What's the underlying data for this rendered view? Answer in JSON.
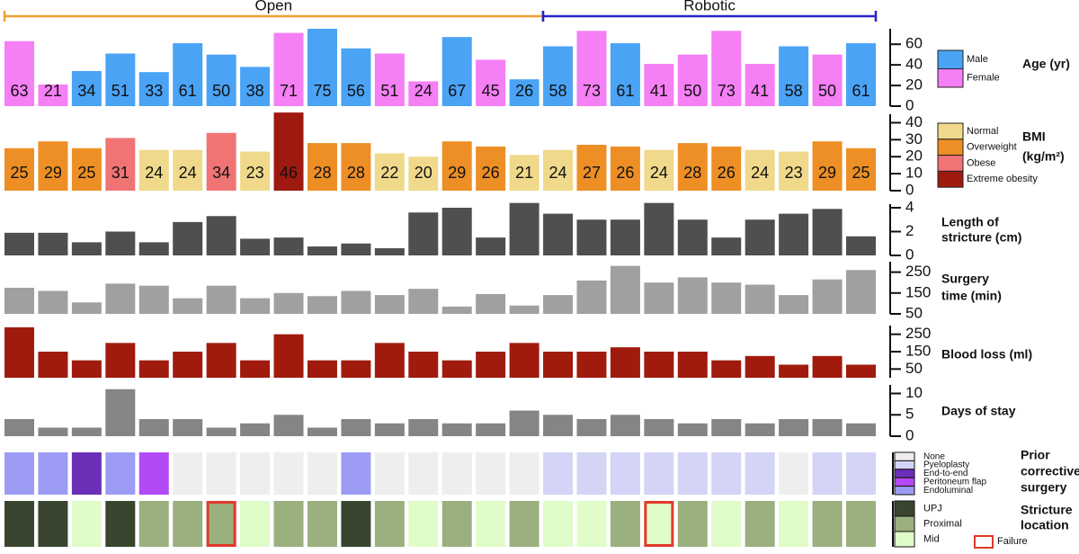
{
  "groups": [
    {
      "label": "Open",
      "color": "#f0a030",
      "count": 16
    },
    {
      "label": "Robotic",
      "color": "#2323c8",
      "count": 10
    }
  ],
  "chart_data": [
    {
      "type": "bar",
      "title": [
        "Age (yr)"
      ],
      "ylim": [
        0,
        75
      ],
      "yticks": [
        0,
        20,
        40,
        60
      ],
      "show_value_labels": true,
      "legend": [
        {
          "name": "Male",
          "color": "#4aa3f5"
        },
        {
          "name": "Female",
          "color": "#f57ff5"
        }
      ],
      "color_index": [
        1,
        1,
        0,
        0,
        0,
        0,
        0,
        0,
        1,
        0,
        0,
        1,
        1,
        0,
        1,
        0,
        0,
        1,
        0,
        1,
        1,
        1,
        1,
        0,
        1,
        0
      ],
      "values": [
        63,
        21,
        34,
        51,
        33,
        61,
        50,
        38,
        71,
        75,
        56,
        51,
        24,
        67,
        45,
        26,
        58,
        73,
        61,
        41,
        50,
        73,
        41,
        58,
        50,
        61
      ]
    },
    {
      "type": "bar",
      "title": [
        "BMI",
        "(kg/m²)"
      ],
      "ylim": [
        0,
        45
      ],
      "yticks": [
        0,
        10,
        20,
        30,
        40
      ],
      "show_value_labels": true,
      "legend": [
        {
          "name": "Normal",
          "color": "#f0d98a"
        },
        {
          "name": "Overweight",
          "color": "#ed8f25"
        },
        {
          "name": "Obese",
          "color": "#f07474"
        },
        {
          "name": "Extreme obesity",
          "color": "#9e1a10",
          "text_color": "#ffffff"
        }
      ],
      "color_index": [
        1,
        1,
        1,
        2,
        0,
        0,
        2,
        0,
        3,
        1,
        1,
        0,
        0,
        1,
        1,
        0,
        0,
        1,
        1,
        0,
        1,
        1,
        0,
        0,
        1,
        1
      ],
      "values": [
        25,
        29,
        25,
        31,
        24,
        24,
        34,
        23,
        46,
        28,
        28,
        22,
        20,
        29,
        26,
        21,
        24,
        27,
        26,
        24,
        28,
        26,
        24,
        23,
        29,
        25
      ]
    },
    {
      "type": "bar",
      "title": [
        "Length of",
        "stricture (cm)"
      ],
      "ylim": [
        0,
        4.3
      ],
      "yticks": [
        0,
        2,
        4
      ],
      "color": "#4f4f4f",
      "values": [
        1.9,
        1.9,
        1.1,
        2,
        1.1,
        2.8,
        3.3,
        1.4,
        1.5,
        0.75,
        1,
        0.6,
        3.6,
        4,
        1.5,
        4.4,
        3.5,
        3,
        3,
        4.4,
        3,
        1.5,
        3,
        3.5,
        3.9,
        1.6
      ]
    },
    {
      "type": "bar",
      "title": [
        "Surgery",
        "time (min)"
      ],
      "ylim": [
        50,
        300
      ],
      "yticks": [
        50,
        150,
        250
      ],
      "color": "#a0a0a0",
      "values": [
        175,
        160,
        105,
        195,
        185,
        125,
        185,
        125,
        150,
        135,
        160,
        140,
        170,
        85,
        145,
        90,
        140,
        210,
        280,
        200,
        225,
        200,
        190,
        140,
        215,
        260
      ]
    },
    {
      "type": "bar",
      "title": [
        "Blood loss (ml)"
      ],
      "ylim": [
        0,
        300
      ],
      "yticks": [
        50,
        150,
        250
      ],
      "color": "#a01b0e",
      "values": [
        290,
        150,
        100,
        200,
        100,
        150,
        200,
        100,
        250,
        100,
        100,
        200,
        150,
        100,
        150,
        200,
        150,
        150,
        175,
        150,
        150,
        100,
        125,
        75,
        125,
        75
      ]
    },
    {
      "type": "bar",
      "title": [
        "Days of stay"
      ],
      "ylim": [
        0,
        12
      ],
      "yticks": [
        0,
        5,
        10
      ],
      "color": "#858585",
      "values": [
        4,
        2,
        2,
        11,
        4,
        4,
        2,
        3,
        5,
        2,
        4,
        3,
        4,
        3,
        3,
        6,
        5,
        4,
        5,
        4,
        3,
        4,
        3,
        4,
        4,
        3
      ]
    },
    {
      "type": "categorical",
      "title": [
        "Prior",
        "corrective",
        "surgery"
      ],
      "legend": [
        {
          "name": "None",
          "color": "#eeeeee"
        },
        {
          "name": "Pyeloplasty",
          "color": "#d4d4f7"
        },
        {
          "name": "End-to-end",
          "color": "#6b2fb8"
        },
        {
          "name": "Peritoneum flap",
          "color": "#b44af7"
        },
        {
          "name": "Endoluminal",
          "color": "#9c9cf5"
        }
      ],
      "values": [
        4,
        4,
        2,
        4,
        3,
        0,
        0,
        0,
        0,
        0,
        4,
        0,
        0,
        0,
        0,
        0,
        1,
        1,
        1,
        1,
        1,
        1,
        1,
        0,
        1,
        1
      ]
    },
    {
      "type": "categorical",
      "title": [
        "Stricture",
        "location"
      ],
      "legend": [
        {
          "name": "UPJ",
          "color": "#3a4530"
        },
        {
          "name": "Proximal",
          "color": "#9bb07f"
        },
        {
          "name": "Mid",
          "color": "#e0fcc8"
        }
      ],
      "values": [
        0,
        0,
        2,
        0,
        1,
        1,
        1,
        2,
        1,
        1,
        0,
        1,
        2,
        1,
        2,
        1,
        2,
        2,
        1,
        2,
        1,
        2,
        1,
        2,
        1,
        1
      ],
      "failure": {
        "label": "Failure",
        "color": "#e03a2a",
        "indices": [
          6,
          19
        ]
      }
    }
  ]
}
